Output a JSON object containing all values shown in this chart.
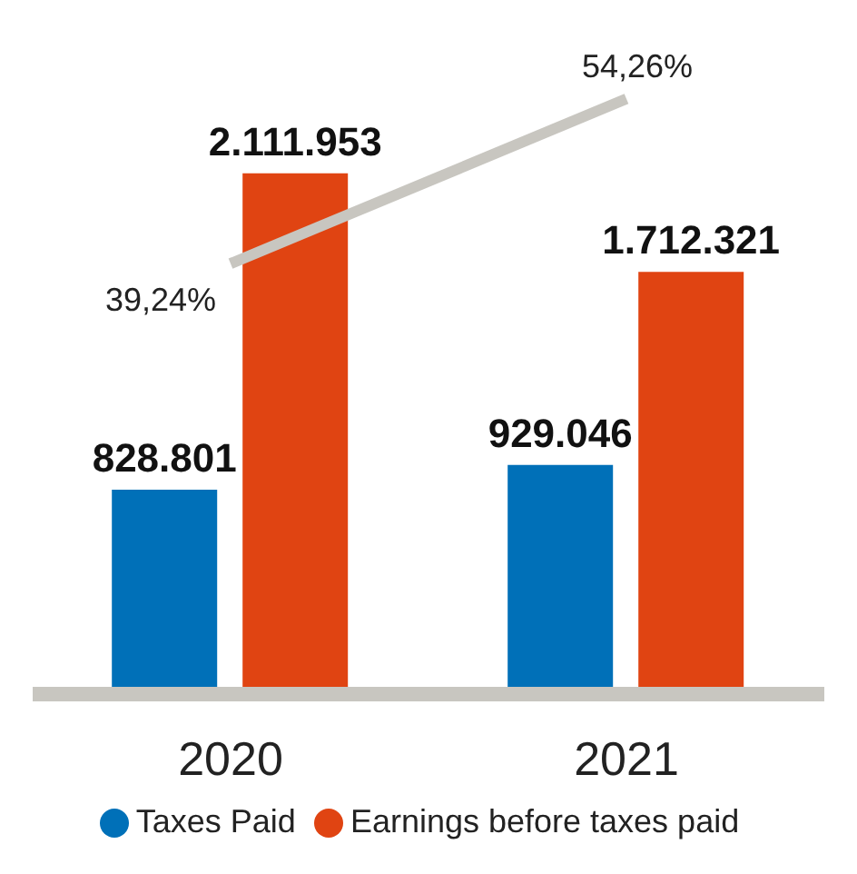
{
  "chart_data": {
    "type": "bar",
    "categories": [
      "2020",
      "2021"
    ],
    "legend": "bottom",
    "series": [
      {
        "name": "Taxes Paid",
        "color": "#0070b8",
        "values": [
          828801,
          929046
        ],
        "value_labels": [
          "828.801",
          "929.046"
        ]
      },
      {
        "name": "Earnings before taxes paid",
        "color": "#e04412",
        "values": [
          2111953,
          1712321
        ],
        "value_labels": [
          "2.111.953",
          "1.712.321"
        ]
      },
      {
        "type": "line",
        "axis": "y2",
        "color": "#c8c6c0",
        "values": [
          39.24,
          54.26
        ],
        "value_labels": [
          "39,24%",
          "54,26%"
        ]
      }
    ]
  }
}
